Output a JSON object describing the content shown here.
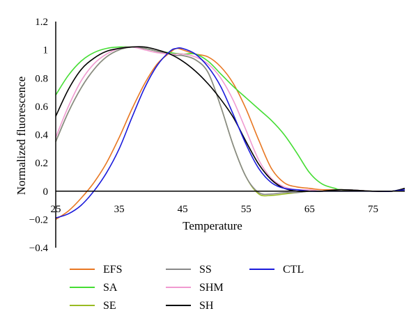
{
  "chart_data": {
    "type": "line",
    "title": "",
    "xlabel": "Temperature",
    "ylabel": "Normalized fluorescence",
    "xlim": [
      25,
      80
    ],
    "ylim": [
      -0.4,
      1.2
    ],
    "x_ticks": [
      "25",
      "35",
      "45",
      "55",
      "65",
      "75"
    ],
    "x_tick_values": [
      25,
      35,
      45,
      55,
      65,
      75
    ],
    "y_ticks": [
      "1.2",
      "1",
      "0.8",
      "0.6",
      "0.4",
      "0.2",
      "0",
      "−0.2",
      "−0.4"
    ],
    "y_tick_values": [
      1.2,
      1,
      0.8,
      0.6,
      0.4,
      0.2,
      0,
      -0.2,
      -0.4
    ],
    "grid": false,
    "legend_position": "bottom",
    "series": [
      {
        "name": "EFS",
        "color": "#e87722",
        "x": [
          25,
          27,
          29,
          31,
          33,
          35,
          37,
          39,
          41,
          43,
          44,
          45,
          47,
          49,
          51,
          53,
          55,
          57,
          59,
          61,
          63,
          65,
          67,
          70,
          75,
          78,
          80
        ],
        "y": [
          -0.2,
          -0.14,
          -0.05,
          0.06,
          0.2,
          0.38,
          0.58,
          0.76,
          0.9,
          0.98,
          1.01,
          1.0,
          0.97,
          0.95,
          0.88,
          0.76,
          0.58,
          0.36,
          0.16,
          0.06,
          0.03,
          0.02,
          0.01,
          0.01,
          0.0,
          0.0,
          0.01
        ]
      },
      {
        "name": "SA",
        "color": "#44dd33",
        "x": [
          25,
          27,
          29,
          31,
          33,
          35,
          37,
          39,
          41,
          43,
          45,
          47,
          49,
          51,
          53,
          55,
          57,
          59,
          61,
          63,
          65,
          67,
          69,
          70,
          75,
          78,
          80
        ],
        "y": [
          0.68,
          0.82,
          0.92,
          0.98,
          1.01,
          1.02,
          1.02,
          1.01,
          0.99,
          0.98,
          0.97,
          0.97,
          0.92,
          0.83,
          0.74,
          0.66,
          0.58,
          0.5,
          0.4,
          0.27,
          0.13,
          0.05,
          0.02,
          0.01,
          0.0,
          0.0,
          0.01
        ]
      },
      {
        "name": "SE",
        "color": "#99bb22",
        "x": [
          25,
          27,
          29,
          31,
          33,
          35,
          37,
          39,
          41,
          43,
          44,
          45,
          47,
          49,
          51,
          53,
          55,
          57,
          59,
          61,
          63,
          65,
          67,
          70,
          75,
          78,
          80
        ],
        "y": [
          0.35,
          0.56,
          0.73,
          0.86,
          0.95,
          1.0,
          1.02,
          1.01,
          0.99,
          0.97,
          0.96,
          0.96,
          0.93,
          0.84,
          0.6,
          0.32,
          0.1,
          -0.02,
          -0.03,
          -0.02,
          -0.01,
          0.0,
          0.0,
          0.01,
          0.0,
          0.0,
          0.01
        ]
      },
      {
        "name": "SS",
        "color": "#888888",
        "x": [
          25,
          27,
          29,
          31,
          33,
          35,
          37,
          39,
          41,
          43,
          44,
          45,
          47,
          49,
          51,
          53,
          55,
          57,
          59,
          61,
          63,
          65,
          67,
          70,
          75,
          78,
          80
        ],
        "y": [
          0.35,
          0.56,
          0.73,
          0.86,
          0.95,
          1.0,
          1.02,
          1.01,
          0.99,
          0.97,
          0.96,
          0.96,
          0.93,
          0.84,
          0.6,
          0.32,
          0.1,
          -0.01,
          -0.02,
          -0.01,
          -0.01,
          0.0,
          0.0,
          0.01,
          0.0,
          0.0,
          0.01
        ]
      },
      {
        "name": "SHM",
        "color": "#f09ad0",
        "x": [
          25,
          27,
          29,
          31,
          33,
          35,
          37,
          39,
          41,
          43,
          45,
          47,
          49,
          51,
          53,
          55,
          57,
          59,
          61,
          63,
          65,
          67,
          70,
          75,
          78,
          80
        ],
        "y": [
          0.38,
          0.6,
          0.78,
          0.9,
          0.97,
          1.01,
          1.02,
          1.0,
          0.98,
          0.97,
          0.97,
          0.95,
          0.9,
          0.8,
          0.64,
          0.43,
          0.22,
          0.09,
          0.03,
          0.01,
          0.01,
          0.0,
          0.01,
          0.0,
          0.0,
          0.01
        ]
      },
      {
        "name": "SH",
        "color": "#000000",
        "x": [
          25,
          27,
          29,
          31,
          33,
          35,
          37,
          39,
          41,
          43,
          45,
          47,
          49,
          51,
          53,
          55,
          57,
          59,
          61,
          63,
          65,
          67,
          70,
          75,
          78,
          80
        ],
        "y": [
          0.53,
          0.72,
          0.86,
          0.94,
          0.99,
          1.01,
          1.02,
          1.02,
          1.0,
          0.97,
          0.92,
          0.85,
          0.76,
          0.65,
          0.52,
          0.35,
          0.19,
          0.08,
          0.02,
          0.0,
          0.0,
          0.0,
          0.01,
          0.0,
          0.0,
          0.02
        ]
      },
      {
        "name": "CTL",
        "color": "#1a1adb",
        "x": [
          25,
          27,
          29,
          31,
          33,
          35,
          37,
          39,
          41,
          43,
          44,
          45,
          47,
          49,
          51,
          53,
          55,
          57,
          59,
          61,
          63,
          65,
          67,
          70,
          75,
          78,
          80
        ],
        "y": [
          -0.19,
          -0.16,
          -0.1,
          0.0,
          0.13,
          0.3,
          0.52,
          0.73,
          0.89,
          0.99,
          1.01,
          1.01,
          0.97,
          0.88,
          0.74,
          0.54,
          0.33,
          0.16,
          0.06,
          0.02,
          0.01,
          0.0,
          0.0,
          0.0,
          0.0,
          0.0,
          0.01
        ]
      }
    ]
  }
}
